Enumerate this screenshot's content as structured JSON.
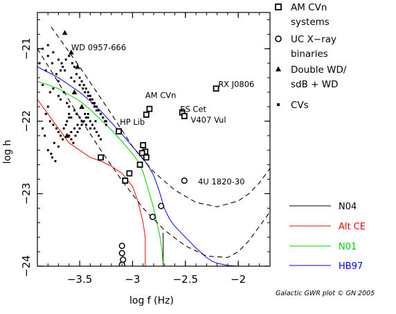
{
  "chart_data": {
    "type": "scatter",
    "xlabel": "log f (Hz)",
    "ylabel": "log h",
    "xlim": [
      -3.9,
      -1.7
    ],
    "ylim": [
      -24.0,
      -20.5
    ],
    "x_ticks": [
      {
        "v": -3.5,
        "label": "−3.5"
      },
      {
        "v": -3.0,
        "label": "−3"
      },
      {
        "v": -2.5,
        "label": "−2.5"
      },
      {
        "v": -2.0,
        "label": "−2"
      }
    ],
    "y_ticks": [
      {
        "v": -21,
        "label": "−21"
      },
      {
        "v": -22,
        "label": "−22"
      },
      {
        "v": -23,
        "label": "−23"
      },
      {
        "v": -24,
        "label": "−24"
      }
    ],
    "credit": "Galactic GWR plot © GN 2005",
    "legend_markers": [
      {
        "marker": "square",
        "label": [
          "AM CVn",
          "systems"
        ]
      },
      {
        "marker": "circle",
        "label": [
          "UC X−ray",
          "binaries"
        ]
      },
      {
        "marker": "triangle",
        "label": [
          "Double WD/",
          "sdB + WD"
        ]
      },
      {
        "marker": "dot",
        "label": [
          "CVs"
        ]
      }
    ],
    "legend_lines": [
      {
        "name": "N04",
        "color": "#000000"
      },
      {
        "name": "Alt CE",
        "color": "#ff0000"
      },
      {
        "name": "N01",
        "color": "#00cc00"
      },
      {
        "name": "HB97",
        "color": "#0000ff"
      }
    ],
    "annotations": [
      {
        "text": "WD 0957-666",
        "x": -3.58,
        "y": -21.02,
        "anchor": "start"
      },
      {
        "text": "RX J0806",
        "x": -2.19,
        "y": -21.53,
        "anchor": "start"
      },
      {
        "text": "AM CVn",
        "x": -2.88,
        "y": -21.68,
        "anchor": "start"
      },
      {
        "text": "ES Cet",
        "x": -2.55,
        "y": -21.87,
        "anchor": "start"
      },
      {
        "text": "HP Lib",
        "x": -3.12,
        "y": -22.05,
        "anchor": "start"
      },
      {
        "text": "V407 Vul",
        "x": -2.45,
        "y": -22.02,
        "anchor": "start"
      },
      {
        "text": "4U 1820-30",
        "x": -2.38,
        "y": -22.87,
        "anchor": "start"
      }
    ],
    "curves": [
      {
        "name": "N04",
        "color": "#000000",
        "x": [
          -2.72,
          -2.71,
          -2.71
        ],
        "y": [
          -23.55,
          -23.55,
          -24.0
        ]
      },
      {
        "name": "Alt CE",
        "color": "#ff0000",
        "x": [
          -3.9,
          -3.8,
          -3.7,
          -3.6,
          -3.5,
          -3.4,
          -3.3,
          -3.2,
          -3.1,
          -3.0,
          -2.95,
          -2.9,
          -2.88,
          -2.88
        ],
        "y": [
          -21.7,
          -21.9,
          -22.1,
          -22.3,
          -22.4,
          -22.5,
          -22.55,
          -22.62,
          -22.72,
          -22.9,
          -23.1,
          -23.4,
          -23.6,
          -24.0
        ]
      },
      {
        "name": "N01",
        "color": "#00cc00",
        "x": [
          -3.9,
          -3.7,
          -3.5,
          -3.4,
          -3.3,
          -3.2,
          -3.1,
          -3.0,
          -2.95,
          -2.9,
          -2.85,
          -2.8,
          -2.77,
          -2.74,
          -2.72,
          -2.71
        ],
        "y": [
          -21.45,
          -21.55,
          -21.72,
          -21.84,
          -21.98,
          -22.12,
          -22.28,
          -22.45,
          -22.55,
          -22.7,
          -22.95,
          -23.2,
          -23.4,
          -23.6,
          -23.8,
          -24.0
        ]
      },
      {
        "name": "HB97",
        "color": "#0000ff",
        "x": [
          -3.9,
          -3.7,
          -3.5,
          -3.4,
          -3.3,
          -3.2,
          -3.1,
          -3.0,
          -2.9,
          -2.85,
          -2.8,
          -2.75,
          -2.7,
          -2.65,
          -2.6,
          -2.5,
          -2.4,
          -2.3,
          -2.25,
          -2.2,
          -2.1,
          -2.0,
          -1.95
        ],
        "y": [
          -21.25,
          -21.4,
          -21.6,
          -21.72,
          -21.86,
          -22.02,
          -22.18,
          -22.35,
          -22.52,
          -22.62,
          -22.75,
          -22.95,
          -23.2,
          -23.35,
          -23.45,
          -23.6,
          -23.75,
          -23.88,
          -23.93,
          -23.96,
          -23.99,
          -24.0,
          -24.0
        ]
      },
      {
        "name": "Sensitivity curve upper",
        "color": "#000000",
        "dashed": true,
        "x": [
          -3.77,
          -3.5,
          -3.2,
          -3.0,
          -2.8,
          -2.6,
          -2.4,
          -2.2,
          -2.0,
          -1.9,
          -1.8,
          -1.75,
          -1.7
        ],
        "y": [
          -20.7,
          -21.25,
          -21.9,
          -22.35,
          -22.7,
          -22.95,
          -23.12,
          -23.18,
          -23.1,
          -23.0,
          -22.85,
          -22.75,
          -22.65
        ]
      },
      {
        "name": "Sensitivity curve lower",
        "color": "#000000",
        "dashed": true,
        "x": [
          -3.9,
          -3.7,
          -3.5,
          -3.3,
          -3.1,
          -2.9,
          -2.7,
          -2.5,
          -2.3,
          -2.1,
          -2.0,
          -1.9,
          -1.8,
          -1.7
        ],
        "y": [
          -21.0,
          -21.47,
          -21.95,
          -22.4,
          -22.82,
          -23.2,
          -23.5,
          -23.72,
          -23.86,
          -23.88,
          -23.8,
          -23.65,
          -23.45,
          -23.25
        ]
      }
    ],
    "am_cvn": {
      "x": [
        -2.21,
        -2.84,
        -2.53,
        -2.51,
        -2.87,
        -3.13,
        -2.9,
        -2.88,
        -2.91,
        -2.87,
        -2.93,
        -3.03,
        -3.07,
        -3.3
      ],
      "y": [
        -21.55,
        -21.83,
        -21.88,
        -21.93,
        -21.91,
        -22.14,
        -22.33,
        -22.42,
        -22.44,
        -22.5,
        -22.6,
        -22.72,
        -22.82,
        -22.5
      ]
    },
    "ucxb": {
      "x": [
        -2.51,
        -2.73,
        -2.81,
        -3.1,
        -3.1,
        -3.09,
        -3.1
      ],
      "y": [
        -22.82,
        -23.17,
        -23.32,
        -23.72,
        -23.82,
        -23.91,
        -23.98
      ]
    },
    "double_wd": {
      "x": [
        -3.64,
        -3.58,
        -3.52,
        -3.55,
        -3.48,
        -3.62
      ],
      "y": [
        -20.78,
        -21.05,
        -21.25,
        -21.6,
        -21.8,
        -22.2
      ]
    },
    "cvs": {
      "x": [
        -3.85,
        -3.88,
        -3.8,
        -3.82,
        -3.76,
        -3.72,
        -3.7,
        -3.85,
        -3.78,
        -3.75,
        -3.7,
        -3.68,
        -3.65,
        -3.62,
        -3.6,
        -3.6,
        -3.58,
        -3.55,
        -3.53,
        -3.5,
        -3.48,
        -3.45,
        -3.44,
        -3.42,
        -3.4,
        -3.4,
        -3.38,
        -3.36,
        -3.35,
        -3.34,
        -3.32,
        -3.3,
        -3.58,
        -3.55,
        -3.5,
        -3.47,
        -3.45,
        -3.42,
        -3.4,
        -3.38,
        -3.36,
        -3.34,
        -3.3,
        -3.28,
        -3.25,
        -3.8,
        -3.82,
        -3.78,
        -3.75,
        -3.72,
        -3.7,
        -3.68,
        -3.65,
        -3.63,
        -3.62,
        -3.6,
        -3.6,
        -3.58,
        -3.56,
        -3.54,
        -3.52,
        -3.5,
        -3.48,
        -3.46,
        -3.44,
        -3.42,
        -3.74,
        -3.7,
        -3.66,
        -3.62,
        -3.58,
        -3.55,
        -3.52,
        -3.8,
        -3.77,
        -3.85,
        -3.83,
        -3.76,
        -3.73,
        -3.68,
        -3.66,
        -3.63,
        -3.6,
        -3.57,
        -3.55,
        -3.53,
        -3.5,
        -3.48,
        -3.46,
        -3.44,
        -3.42,
        -3.4,
        -3.38,
        -3.36,
        -3.34,
        -3.32,
        -3.3,
        -3.28,
        -3.26,
        -3.25,
        -3.8,
        -3.75,
        -3.7,
        -3.67,
        -3.64
      ],
      "y": [
        -21.0,
        -21.2,
        -21.1,
        -21.3,
        -21.2,
        -21.35,
        -21.45,
        -21.5,
        -21.6,
        -21.55,
        -21.65,
        -21.7,
        -21.6,
        -21.75,
        -21.8,
        -21.9,
        -21.95,
        -21.85,
        -21.9,
        -21.95,
        -22.0,
        -21.9,
        -22.05,
        -21.95,
        -22.0,
        -22.1,
        -22.05,
        -22.1,
        -22.0,
        -22.15,
        -22.2,
        -22.25,
        -21.4,
        -21.45,
        -21.5,
        -21.55,
        -21.6,
        -21.65,
        -21.7,
        -21.75,
        -21.8,
        -21.85,
        -21.9,
        -21.95,
        -22.0,
        -21.8,
        -21.9,
        -22.0,
        -22.05,
        -22.1,
        -22.15,
        -22.2,
        -22.1,
        -22.05,
        -22.0,
        -21.95,
        -22.2,
        -22.25,
        -22.3,
        -22.2,
        -22.15,
        -22.1,
        -22.05,
        -22.0,
        -21.95,
        -21.9,
        -22.3,
        -22.35,
        -22.25,
        -22.2,
        -22.15,
        -22.1,
        -22.05,
        -22.4,
        -22.45,
        -22.1,
        -22.2,
        -22.5,
        -22.55,
        -21.3,
        -21.25,
        -21.15,
        -21.1,
        -21.2,
        -21.25,
        -21.35,
        -21.4,
        -21.45,
        -21.5,
        -21.55,
        -21.6,
        -21.65,
        -21.7,
        -21.75,
        -21.8,
        -21.85,
        -21.9,
        -21.95,
        -22.0,
        -22.05,
        -20.95,
        -21.05,
        -21.15,
        -21.2,
        -21.3
      ]
    }
  }
}
